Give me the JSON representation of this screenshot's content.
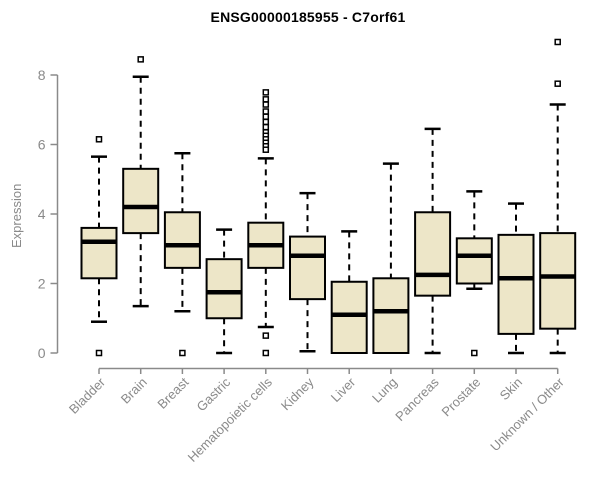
{
  "chart_data": {
    "type": "box",
    "title": "ENSG00000185955 - C7orf61",
    "ylabel": "Expression",
    "ylim": [
      0,
      8
    ],
    "yticks": [
      0,
      2,
      4,
      6,
      8
    ],
    "grid": false,
    "legend": "none",
    "categories": [
      "Bladder",
      "Brain",
      "Breast",
      "Gastric",
      "Hematopoietic cells",
      "Kidney",
      "Liver",
      "Lung",
      "Pancreas",
      "Prostate",
      "Skin",
      "Unknown / Other"
    ],
    "boxes": [
      {
        "category": "Bladder",
        "whisker_low": 0.9,
        "q1": 2.15,
        "median": 3.2,
        "q3": 3.6,
        "whisker_high": 5.65,
        "outliers": [
          6.15,
          0
        ]
      },
      {
        "category": "Brain",
        "whisker_low": 1.35,
        "q1": 3.45,
        "median": 4.2,
        "q3": 5.3,
        "whisker_high": 7.95,
        "outliers": [
          8.45
        ]
      },
      {
        "category": "Breast",
        "whisker_low": 1.2,
        "q1": 2.45,
        "median": 3.1,
        "q3": 4.05,
        "whisker_high": 5.75,
        "outliers": [
          0
        ]
      },
      {
        "category": "Gastric",
        "whisker_low": 0,
        "q1": 1.0,
        "median": 1.75,
        "q3": 2.7,
        "whisker_high": 3.55,
        "outliers": []
      },
      {
        "category": "Hematopoietic cells",
        "whisker_low": 0.75,
        "q1": 2.45,
        "median": 3.1,
        "q3": 3.75,
        "whisker_high": 5.6,
        "outliers": [
          7.5,
          7.3,
          7.15,
          6.95,
          6.8,
          6.65,
          6.5,
          6.35,
          6.25,
          6.15,
          6.05,
          5.95,
          5.85,
          0.5,
          0
        ]
      },
      {
        "category": "Kidney",
        "whisker_low": 0.05,
        "q1": 1.55,
        "median": 2.8,
        "q3": 3.35,
        "whisker_high": 4.6,
        "outliers": []
      },
      {
        "category": "Liver",
        "whisker_low": 0,
        "q1": 0,
        "median": 1.1,
        "q3": 2.05,
        "whisker_high": 3.5,
        "outliers": []
      },
      {
        "category": "Lung",
        "whisker_low": 0,
        "q1": 0,
        "median": 1.2,
        "q3": 2.15,
        "whisker_high": 5.45,
        "outliers": []
      },
      {
        "category": "Pancreas",
        "whisker_low": 0,
        "q1": 1.65,
        "median": 2.25,
        "q3": 4.05,
        "whisker_high": 6.45,
        "outliers": []
      },
      {
        "category": "Prostate",
        "whisker_low": 1.85,
        "q1": 2.0,
        "median": 2.8,
        "q3": 3.3,
        "whisker_high": 4.65,
        "outliers": [
          0
        ]
      },
      {
        "category": "Skin",
        "whisker_low": 0,
        "q1": 0.55,
        "median": 2.15,
        "q3": 3.4,
        "whisker_high": 4.3,
        "outliers": []
      },
      {
        "category": "Unknown / Other",
        "whisker_low": 0,
        "q1": 0.7,
        "median": 2.2,
        "q3": 3.45,
        "whisker_high": 7.15,
        "outliers": [
          8.95,
          7.75
        ]
      }
    ]
  },
  "colors": {
    "background": "#FFFFFF",
    "box_fill": "#EDE6C8",
    "box_stroke": "#000000",
    "median": "#000000",
    "whisker": "#000000",
    "outlier_fill": "#FFFFFF",
    "axis": "#8A8A8A",
    "tick_label": "#8A8A8A",
    "title": "#000000"
  }
}
